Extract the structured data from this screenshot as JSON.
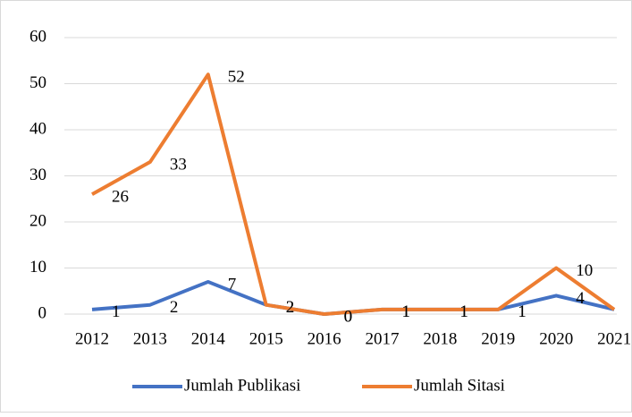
{
  "chart_data": {
    "type": "line",
    "categories": [
      "2012",
      "2013",
      "2014",
      "2015",
      "2016",
      "2017",
      "2018",
      "2019",
      "2020",
      "2021"
    ],
    "series": [
      {
        "name": "Jumlah Publikasi",
        "color": "#4472c4",
        "values": [
          1,
          2,
          7,
          2,
          0,
          1,
          1,
          1,
          4,
          1
        ]
      },
      {
        "name": "Jumlah Sitasi",
        "color": "#ed7d31",
        "values": [
          26,
          33,
          52,
          2,
          0,
          1,
          1,
          1,
          10,
          1
        ]
      }
    ],
    "ylim": [
      0,
      60
    ],
    "yticks": [
      0,
      10,
      20,
      30,
      40,
      50,
      60
    ],
    "grid": true,
    "legend": "bottom"
  }
}
